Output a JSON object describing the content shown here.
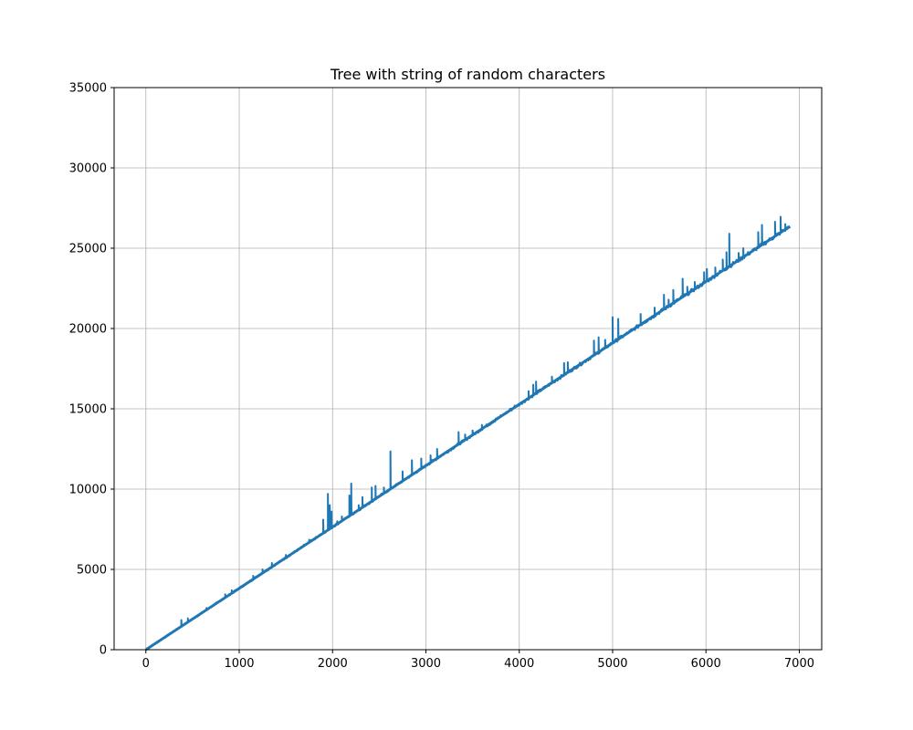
{
  "chart_data": {
    "type": "line",
    "title": "Tree with string of random characters",
    "xlabel": "",
    "ylabel": "",
    "xlim": [
      -340,
      7240
    ],
    "ylim": [
      0,
      35000
    ],
    "xticks": [
      0,
      1000,
      2000,
      3000,
      4000,
      5000,
      6000,
      7000
    ],
    "yticks": [
      0,
      5000,
      10000,
      15000,
      20000,
      25000,
      30000,
      35000
    ],
    "xtick_labels": [
      "0",
      "1000",
      "2000",
      "3000",
      "4000",
      "5000",
      "6000",
      "7000"
    ],
    "ytick_labels": [
      "0",
      "5000",
      "10000",
      "15000",
      "20000",
      "25000",
      "30000",
      "35000"
    ],
    "grid": true,
    "series": [
      {
        "color": "#1f77b4",
        "x_range": [
          0,
          6900
        ],
        "baseline": {
          "slope": 3.82,
          "intercept": 0
        },
        "spikes": [
          {
            "x": 380,
            "y": 1850
          },
          {
            "x": 450,
            "y": 1950
          },
          {
            "x": 650,
            "y": 2600
          },
          {
            "x": 850,
            "y": 3450
          },
          {
            "x": 920,
            "y": 3700
          },
          {
            "x": 1150,
            "y": 4600
          },
          {
            "x": 1250,
            "y": 5000
          },
          {
            "x": 1350,
            "y": 5400
          },
          {
            "x": 1500,
            "y": 5900
          },
          {
            "x": 1750,
            "y": 6850
          },
          {
            "x": 1900,
            "y": 8100
          },
          {
            "x": 1950,
            "y": 9700
          },
          {
            "x": 1970,
            "y": 9000
          },
          {
            "x": 1990,
            "y": 8600
          },
          {
            "x": 2050,
            "y": 8000
          },
          {
            "x": 2100,
            "y": 8300
          },
          {
            "x": 2180,
            "y": 9600
          },
          {
            "x": 2200,
            "y": 10350
          },
          {
            "x": 2280,
            "y": 9000
          },
          {
            "x": 2320,
            "y": 9500
          },
          {
            "x": 2420,
            "y": 10100
          },
          {
            "x": 2460,
            "y": 10200
          },
          {
            "x": 2550,
            "y": 10100
          },
          {
            "x": 2620,
            "y": 12350
          },
          {
            "x": 2750,
            "y": 11100
          },
          {
            "x": 2850,
            "y": 11800
          },
          {
            "x": 2950,
            "y": 11900
          },
          {
            "x": 3050,
            "y": 12100
          },
          {
            "x": 3120,
            "y": 12500
          },
          {
            "x": 3350,
            "y": 13550
          },
          {
            "x": 3420,
            "y": 13400
          },
          {
            "x": 3500,
            "y": 13650
          },
          {
            "x": 3600,
            "y": 14000
          },
          {
            "x": 3750,
            "y": 14400
          },
          {
            "x": 3900,
            "y": 15000
          },
          {
            "x": 3950,
            "y": 15200
          },
          {
            "x": 4100,
            "y": 16100
          },
          {
            "x": 4150,
            "y": 16500
          },
          {
            "x": 4180,
            "y": 16700
          },
          {
            "x": 4350,
            "y": 17000
          },
          {
            "x": 4480,
            "y": 17850
          },
          {
            "x": 4520,
            "y": 17900
          },
          {
            "x": 4800,
            "y": 19250
          },
          {
            "x": 4850,
            "y": 19450
          },
          {
            "x": 4920,
            "y": 19300
          },
          {
            "x": 5000,
            "y": 20700
          },
          {
            "x": 5060,
            "y": 20600
          },
          {
            "x": 5300,
            "y": 20900
          },
          {
            "x": 5450,
            "y": 21300
          },
          {
            "x": 5550,
            "y": 22100
          },
          {
            "x": 5600,
            "y": 21800
          },
          {
            "x": 5650,
            "y": 22400
          },
          {
            "x": 5750,
            "y": 23100
          },
          {
            "x": 5800,
            "y": 22600
          },
          {
            "x": 5880,
            "y": 22900
          },
          {
            "x": 5980,
            "y": 23500
          },
          {
            "x": 6010,
            "y": 23700
          },
          {
            "x": 6100,
            "y": 23800
          },
          {
            "x": 6180,
            "y": 24300
          },
          {
            "x": 6220,
            "y": 24750
          },
          {
            "x": 6250,
            "y": 25900
          },
          {
            "x": 6350,
            "y": 24700
          },
          {
            "x": 6400,
            "y": 25000
          },
          {
            "x": 6560,
            "y": 26000
          },
          {
            "x": 6600,
            "y": 26450
          },
          {
            "x": 6740,
            "y": 26650
          },
          {
            "x": 6800,
            "y": 26950
          },
          {
            "x": 6850,
            "y": 26500
          }
        ]
      }
    ]
  }
}
